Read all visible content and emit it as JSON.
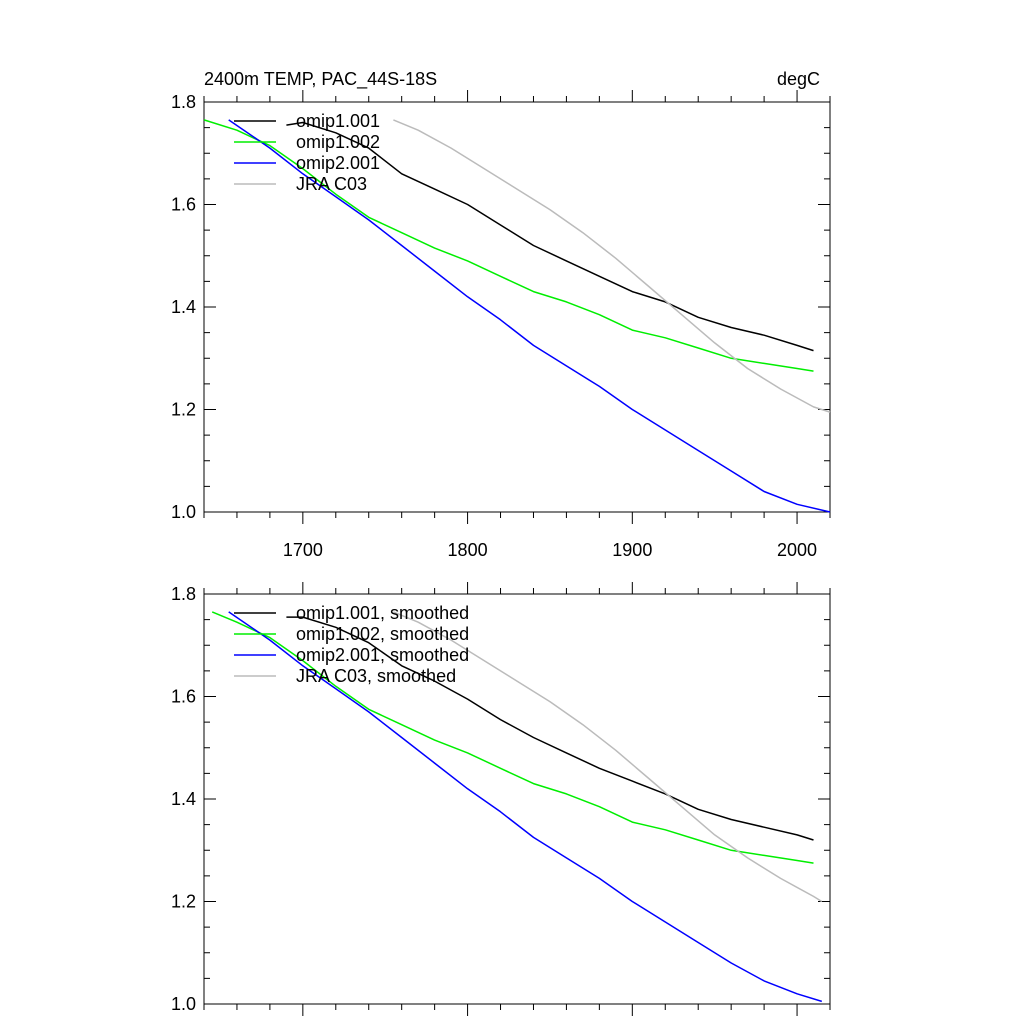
{
  "chart_data": [
    {
      "type": "line",
      "title": "2400m TEMP, PAC_44S-18S",
      "units": "degC",
      "xlabel": "",
      "ylabel": "",
      "xlim": [
        1640,
        2020
      ],
      "ylim": [
        1.0,
        1.8
      ],
      "x_ticks": [
        1700,
        1800,
        1900,
        2000
      ],
      "y_ticks": [
        1.0,
        1.2,
        1.4,
        1.6,
        1.8
      ],
      "x_tick_labels": [
        "1700",
        "1800",
        "1900",
        "2000"
      ],
      "y_tick_labels": [
        "1.0",
        "1.2",
        "1.4",
        "1.6",
        "1.8"
      ],
      "legend_position": "top-left",
      "grid": false,
      "series": [
        {
          "name": "omip1.001",
          "color": "#000000",
          "x": [
            1690,
            1700,
            1720,
            1740,
            1760,
            1780,
            1800,
            1820,
            1840,
            1860,
            1880,
            1900,
            1920,
            1940,
            1960,
            1980,
            2000,
            2010
          ],
          "y": [
            1.755,
            1.76,
            1.74,
            1.71,
            1.66,
            1.63,
            1.6,
            1.56,
            1.52,
            1.49,
            1.46,
            1.43,
            1.41,
            1.38,
            1.36,
            1.345,
            1.325,
            1.315
          ]
        },
        {
          "name": "omip1.002",
          "color": "#00ee00",
          "x": [
            1640,
            1660,
            1680,
            1700,
            1720,
            1740,
            1760,
            1780,
            1800,
            1820,
            1840,
            1860,
            1880,
            1900,
            1920,
            1940,
            1960,
            1980,
            2000,
            2010
          ],
          "y": [
            1.765,
            1.745,
            1.715,
            1.67,
            1.62,
            1.575,
            1.545,
            1.515,
            1.49,
            1.46,
            1.43,
            1.41,
            1.385,
            1.355,
            1.34,
            1.32,
            1.3,
            1.29,
            1.28,
            1.275
          ]
        },
        {
          "name": "omip2.001",
          "color": "#0000ff",
          "x": [
            1655,
            1680,
            1700,
            1720,
            1740,
            1760,
            1780,
            1800,
            1820,
            1840,
            1860,
            1880,
            1900,
            1920,
            1940,
            1960,
            1980,
            2000,
            2020
          ],
          "y": [
            1.765,
            1.71,
            1.66,
            1.615,
            1.57,
            1.52,
            1.47,
            1.42,
            1.375,
            1.325,
            1.285,
            1.245,
            1.2,
            1.16,
            1.12,
            1.08,
            1.04,
            1.015,
            1.0
          ]
        },
        {
          "name": "JRA C03",
          "color": "#bbbbbb",
          "x": [
            1755,
            1770,
            1790,
            1810,
            1830,
            1850,
            1870,
            1890,
            1910,
            1930,
            1950,
            1970,
            1990,
            2010,
            2020
          ],
          "y": [
            1.765,
            1.745,
            1.71,
            1.67,
            1.63,
            1.59,
            1.545,
            1.495,
            1.44,
            1.385,
            1.33,
            1.28,
            1.24,
            1.205,
            1.195
          ]
        }
      ]
    },
    {
      "type": "line",
      "title": "",
      "xlabel": "",
      "ylabel": "",
      "xlim": [
        1640,
        2020
      ],
      "ylim": [
        1.0,
        1.8
      ],
      "x_ticks": [
        1700,
        1800,
        1900,
        2000
      ],
      "y_ticks": [
        1.0,
        1.2,
        1.4,
        1.6,
        1.8
      ],
      "y_tick_labels": [
        "1.0",
        "1.2",
        "1.4",
        "1.6",
        "1.8"
      ],
      "legend_position": "top-left",
      "grid": false,
      "series": [
        {
          "name": "omip1.001, smoothed",
          "color": "#000000",
          "x": [
            1690,
            1700,
            1720,
            1740,
            1760,
            1780,
            1800,
            1820,
            1840,
            1860,
            1880,
            1900,
            1920,
            1940,
            1960,
            1980,
            2000,
            2010
          ],
          "y": [
            1.755,
            1.755,
            1.735,
            1.705,
            1.66,
            1.63,
            1.595,
            1.555,
            1.52,
            1.49,
            1.46,
            1.435,
            1.41,
            1.38,
            1.36,
            1.345,
            1.33,
            1.32
          ]
        },
        {
          "name": "omip1.002, smoothed",
          "color": "#00ee00",
          "x": [
            1645,
            1660,
            1680,
            1700,
            1720,
            1740,
            1760,
            1780,
            1800,
            1820,
            1840,
            1860,
            1880,
            1900,
            1920,
            1940,
            1960,
            1980,
            2000,
            2010
          ],
          "y": [
            1.765,
            1.745,
            1.715,
            1.67,
            1.62,
            1.575,
            1.545,
            1.515,
            1.49,
            1.46,
            1.43,
            1.41,
            1.385,
            1.355,
            1.34,
            1.32,
            1.3,
            1.29,
            1.28,
            1.275
          ]
        },
        {
          "name": "omip2.001, smoothed",
          "color": "#0000ff",
          "x": [
            1655,
            1680,
            1700,
            1720,
            1740,
            1760,
            1780,
            1800,
            1820,
            1840,
            1860,
            1880,
            1900,
            1920,
            1940,
            1960,
            1980,
            2000,
            2015
          ],
          "y": [
            1.765,
            1.71,
            1.66,
            1.615,
            1.57,
            1.52,
            1.47,
            1.42,
            1.375,
            1.325,
            1.285,
            1.245,
            1.2,
            1.16,
            1.12,
            1.08,
            1.045,
            1.02,
            1.005
          ]
        },
        {
          "name": "JRA C03, smoothed",
          "color": "#bbbbbb",
          "x": [
            1755,
            1770,
            1790,
            1810,
            1830,
            1850,
            1870,
            1890,
            1910,
            1930,
            1950,
            1970,
            1990,
            2010,
            2015
          ],
          "y": [
            1.765,
            1.745,
            1.71,
            1.67,
            1.63,
            1.59,
            1.545,
            1.495,
            1.44,
            1.385,
            1.33,
            1.285,
            1.245,
            1.21,
            1.2
          ]
        }
      ]
    }
  ]
}
